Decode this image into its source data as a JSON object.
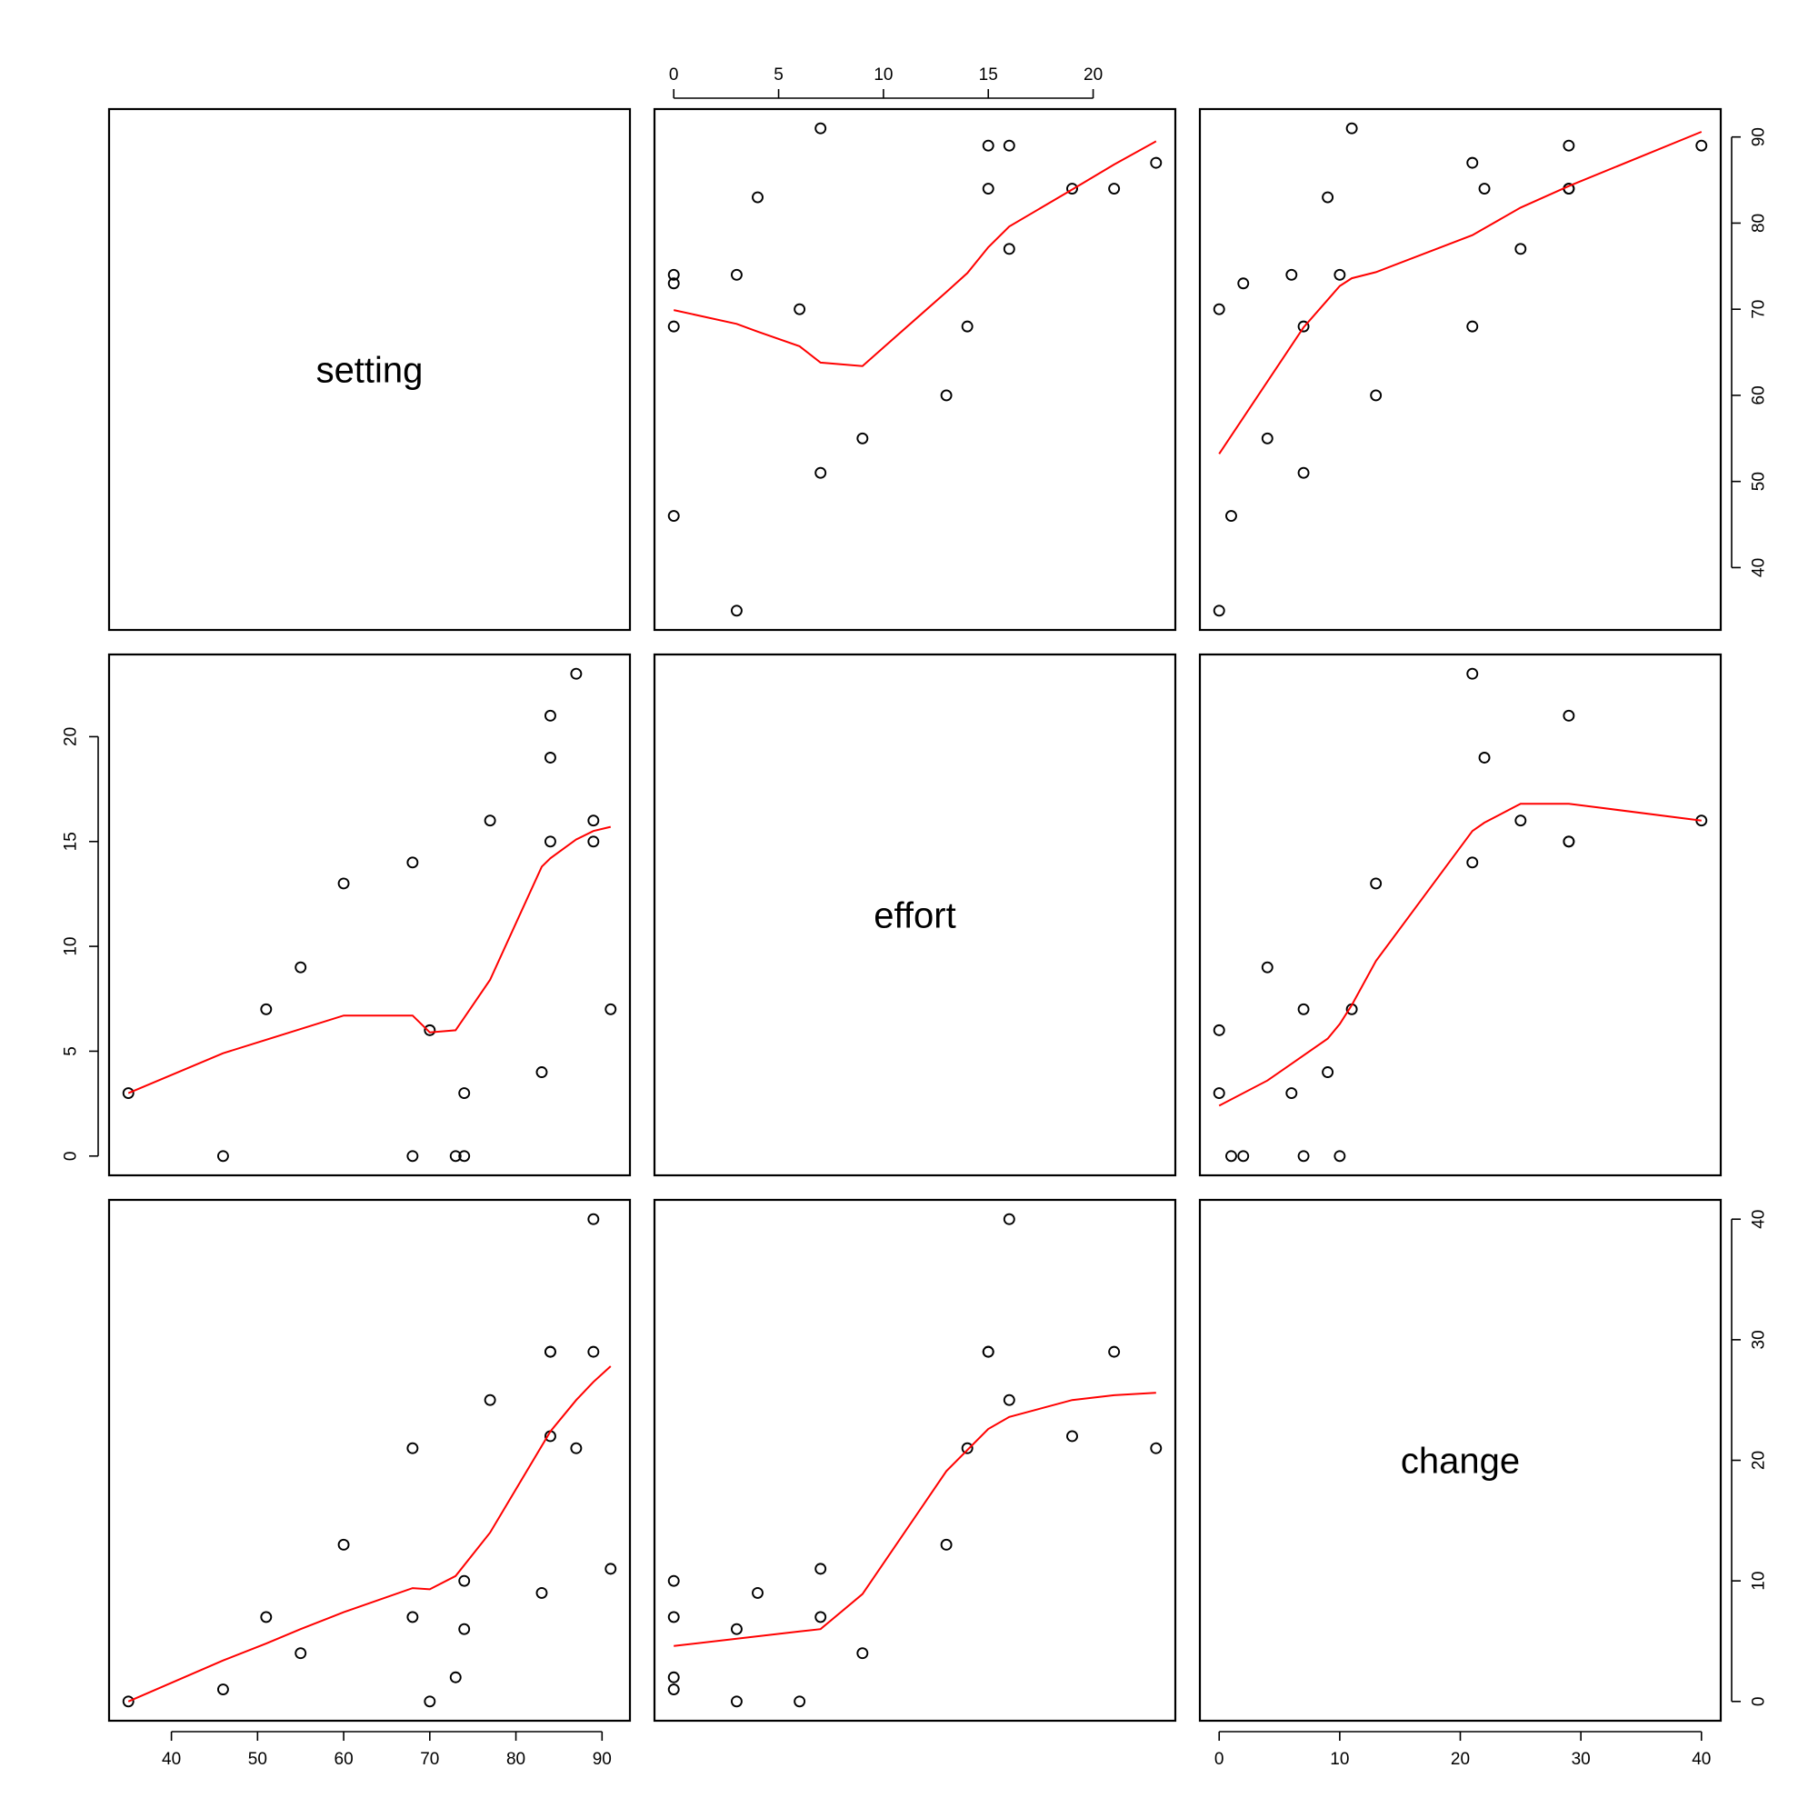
{
  "chart_data": {
    "type": "scatter",
    "variables": [
      "setting",
      "effort",
      "change"
    ],
    "lowess_color": "#ff0000",
    "point_color": "#000000",
    "observations": {
      "setting": [
        46,
        74,
        35,
        83,
        68,
        74,
        84,
        89,
        77,
        84,
        89,
        68,
        70,
        60,
        55,
        51,
        91,
        84,
        73,
        87
      ],
      "effort": [
        0,
        0,
        3,
        4,
        0,
        3,
        15,
        16,
        16,
        21,
        15,
        14,
        6,
        13,
        9,
        7,
        7,
        19,
        0,
        23
      ],
      "change": [
        1,
        10,
        0,
        9,
        7,
        6,
        29,
        40,
        25,
        29,
        29,
        21,
        0,
        13,
        4,
        7,
        11,
        22,
        2,
        21
      ]
    },
    "axes": {
      "setting": {
        "ticks": [
          40,
          50,
          60,
          70,
          80,
          90
        ],
        "range": [
          35,
          91
        ]
      },
      "effort": {
        "ticks": [
          0,
          5,
          10,
          15,
          20
        ],
        "range": [
          0,
          23
        ]
      },
      "change": {
        "ticks": [
          0,
          10,
          20,
          30,
          40
        ],
        "range": [
          0,
          40
        ]
      }
    },
    "lowess": {
      "setting_vs_effort": {
        "x": [
          0,
          3,
          4,
          6,
          7,
          9,
          13,
          14,
          15,
          16,
          19,
          21,
          23
        ],
        "y": [
          69.9,
          68.3,
          67.4,
          65.7,
          63.8,
          63.4,
          72,
          74.2,
          77.2,
          79.6,
          83.9,
          86.8,
          89.5
        ]
      },
      "setting_vs_change": {
        "x": [
          0,
          7,
          9,
          10,
          11,
          13,
          21,
          25,
          29,
          40
        ],
        "y": [
          53.2,
          67.9,
          71.1,
          72.7,
          73.6,
          74.3,
          78.6,
          81.8,
          84.3,
          90.6
        ]
      },
      "effort_vs_setting": {
        "x": [
          35,
          46,
          60,
          68,
          70,
          73,
          77,
          83,
          84,
          87,
          89,
          91
        ],
        "y": [
          3.0,
          4.9,
          6.7,
          6.7,
          5.9,
          6.0,
          8.4,
          13.8,
          14.2,
          15.1,
          15.5,
          15.7
        ]
      },
      "effort_vs_change": {
        "x": [
          0,
          4,
          6,
          9,
          10,
          11,
          13,
          21,
          22,
          25,
          29,
          40
        ],
        "y": [
          2.4,
          3.6,
          4.4,
          5.6,
          6.3,
          7.2,
          9.3,
          15.5,
          15.9,
          16.8,
          16.8,
          16.0
        ]
      },
      "change_vs_setting": {
        "x": [
          35,
          46,
          51,
          55,
          60,
          68,
          70,
          73,
          77,
          84,
          87,
          89,
          91
        ],
        "y": [
          0,
          3.4,
          4.8,
          6.0,
          7.4,
          9.4,
          9.3,
          10.4,
          14.0,
          22.4,
          25.0,
          26.5,
          27.8
        ]
      },
      "change_vs_effort": {
        "x": [
          0,
          6,
          7,
          9,
          13,
          15,
          16,
          19,
          21,
          23
        ],
        "y": [
          4.6,
          5.8,
          6.0,
          8.9,
          19.1,
          22.6,
          23.6,
          25.0,
          25.4,
          25.6
        ]
      }
    }
  }
}
